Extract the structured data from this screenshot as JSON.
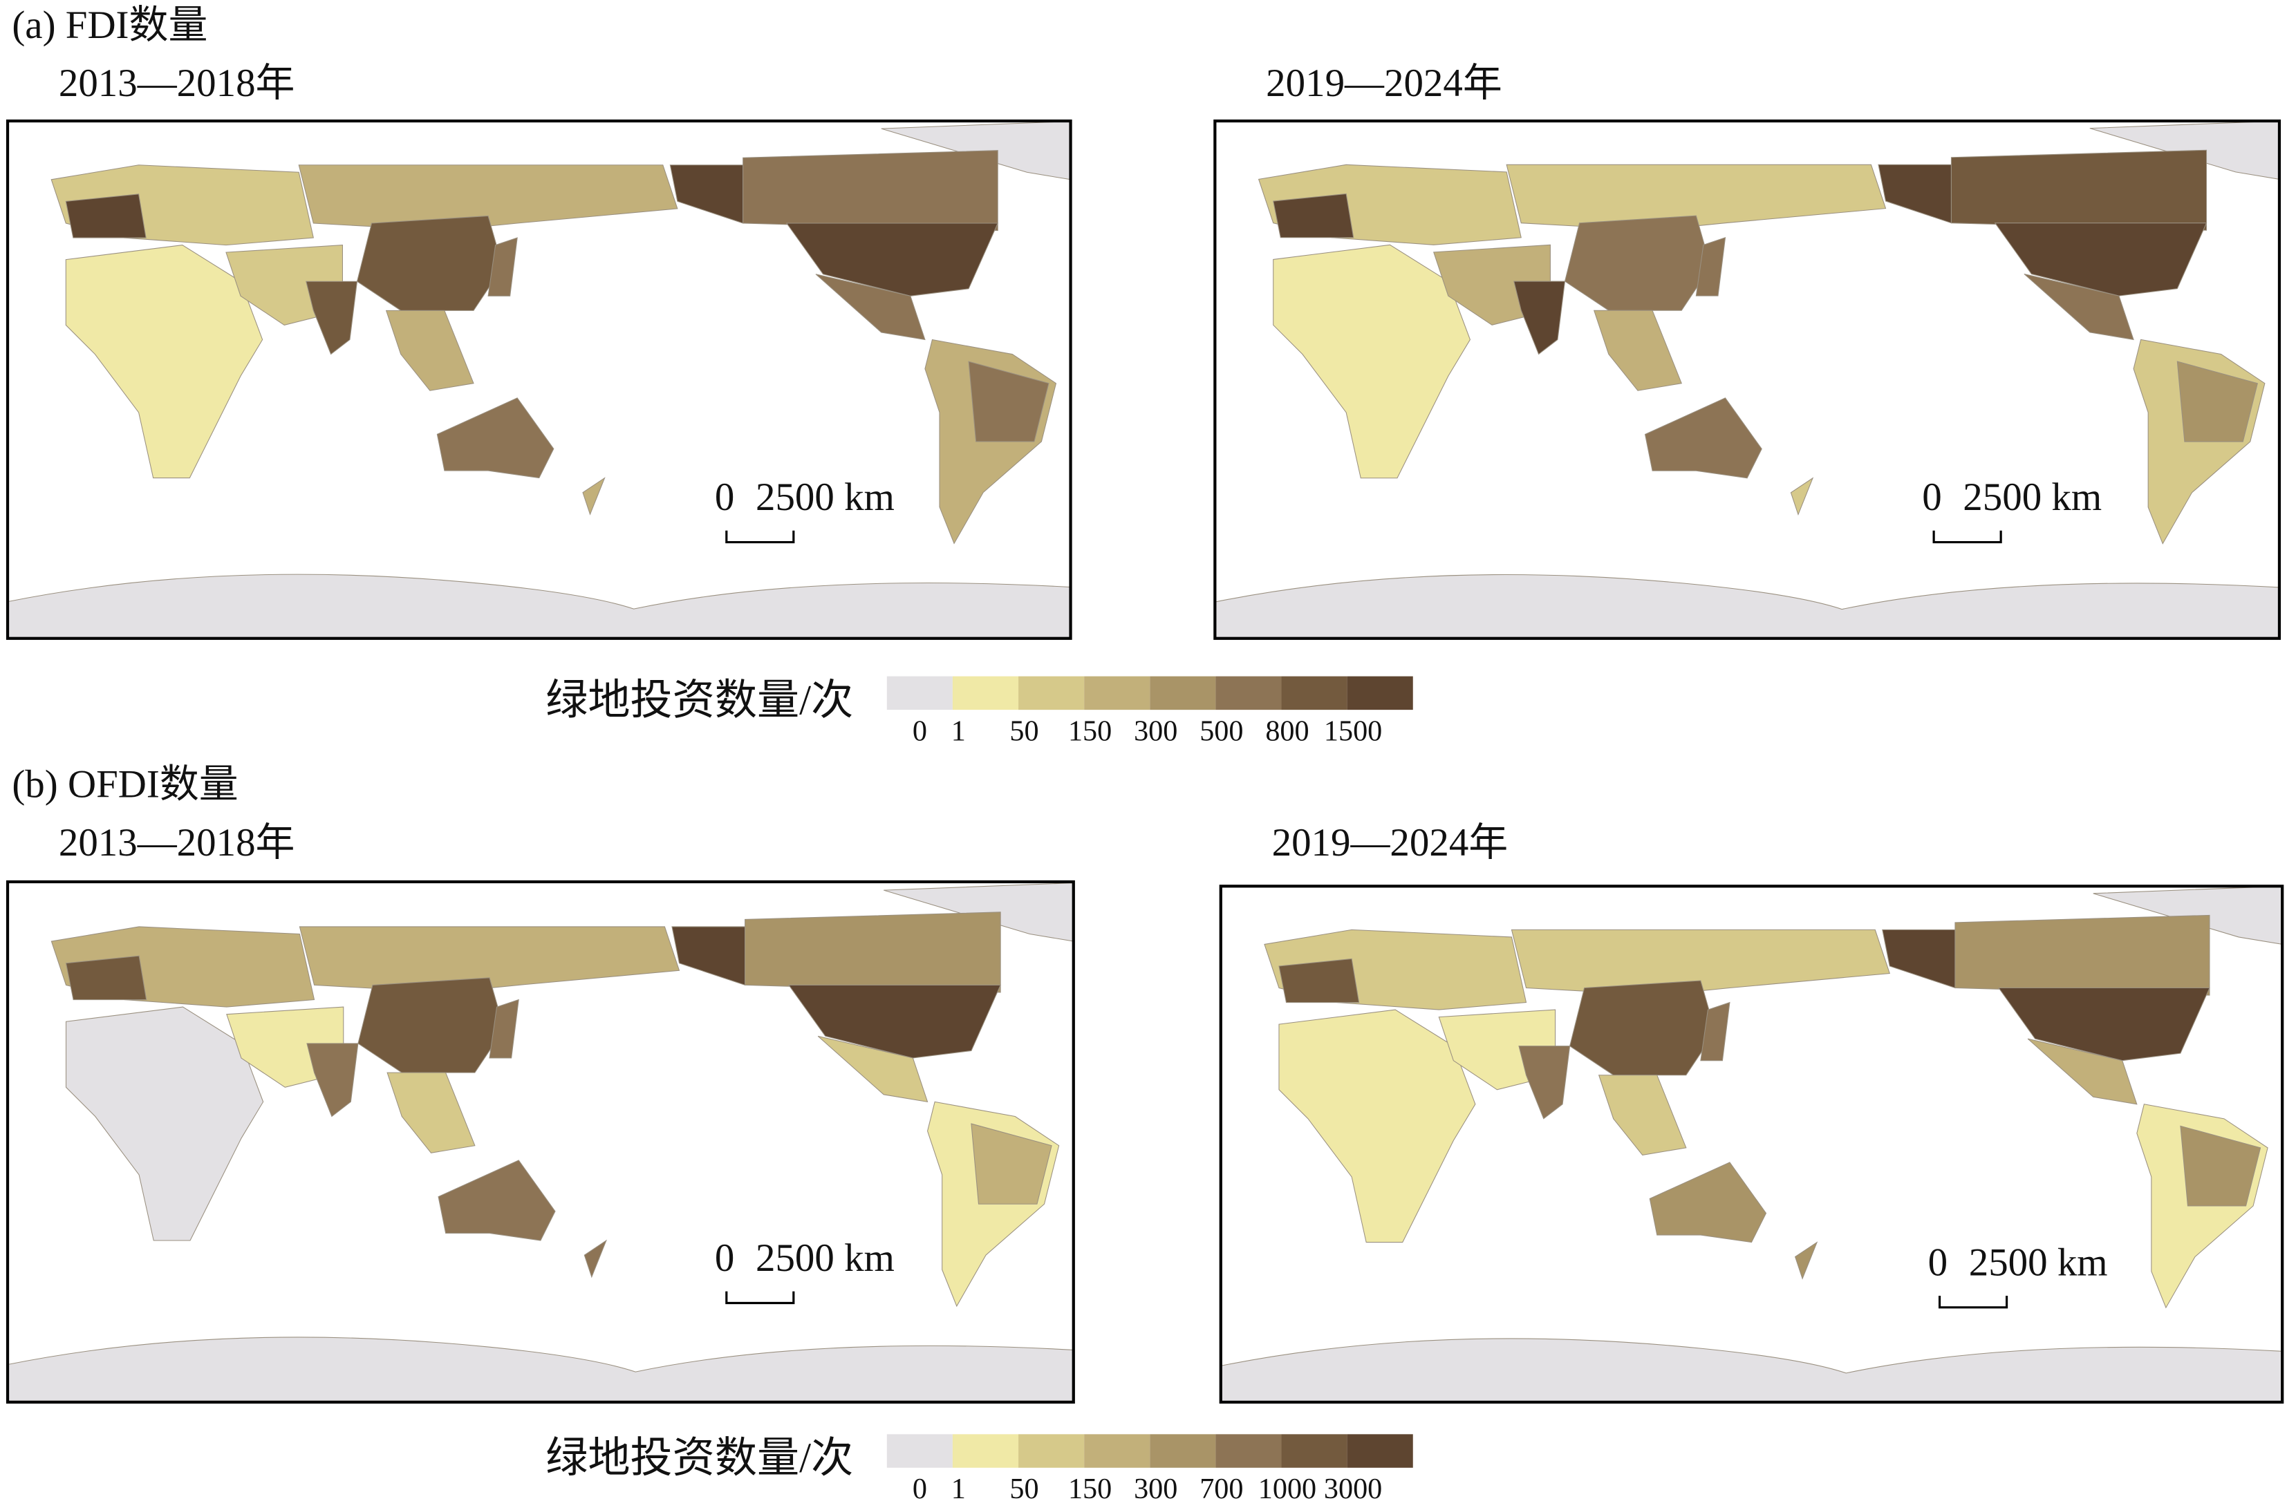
{
  "panel_a": {
    "label": "(a) FDI数量",
    "maps": [
      {
        "period": "2013—2018年",
        "scale_zero": "0",
        "scale_label": "2500 km"
      },
      {
        "period": "2019—2024年",
        "scale_zero": "0",
        "scale_label": "2500 km"
      }
    ],
    "legend": {
      "title": "绿地投资数量/次",
      "ticks": [
        0,
        1,
        50,
        150,
        300,
        500,
        800,
        1500
      ],
      "colors": [
        "#e3e1e4",
        "#f0e9a6",
        "#d6c98a",
        "#c2b07a",
        "#a99467",
        "#8d7455",
        "#735a3e",
        "#5e4530"
      ]
    }
  },
  "panel_b": {
    "label": "(b) OFDI数量",
    "maps": [
      {
        "period": "2013—2018年",
        "scale_zero": "0",
        "scale_label": "2500 km"
      },
      {
        "period": "2019—2024年",
        "scale_zero": "0",
        "scale_label": "2500 km"
      }
    ],
    "legend": {
      "title": "绿地投资数量/次",
      "ticks": [
        0,
        1,
        50,
        150,
        300,
        700,
        1000,
        3000
      ],
      "colors": [
        "#e3e1e4",
        "#f0e9a6",
        "#d6c98a",
        "#c2b07a",
        "#a99467",
        "#8d7455",
        "#735a3e",
        "#5e4530"
      ]
    }
  }
}
